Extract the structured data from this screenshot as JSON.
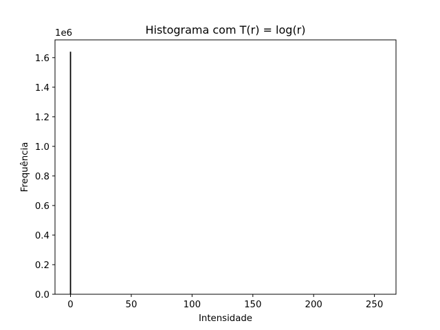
{
  "chart_data": {
    "type": "bar",
    "title": "Histograma com T(r) = log(r)",
    "xlabel": "Intensidade",
    "ylabel": "Frequência",
    "y_offset_text": "1e6",
    "x_ticks": [
      0,
      50,
      100,
      150,
      200,
      250
    ],
    "y_ticks": [
      "0.0",
      "0.2",
      "0.4",
      "0.6",
      "0.8",
      "1.0",
      "1.2",
      "1.4",
      "1.6"
    ],
    "xlim": [
      -12.75,
      267.75
    ],
    "ylim": [
      0,
      1720000
    ],
    "bars": [
      {
        "x": 0,
        "value": 1640000
      }
    ],
    "bar_color": "#000000",
    "grid": false
  }
}
